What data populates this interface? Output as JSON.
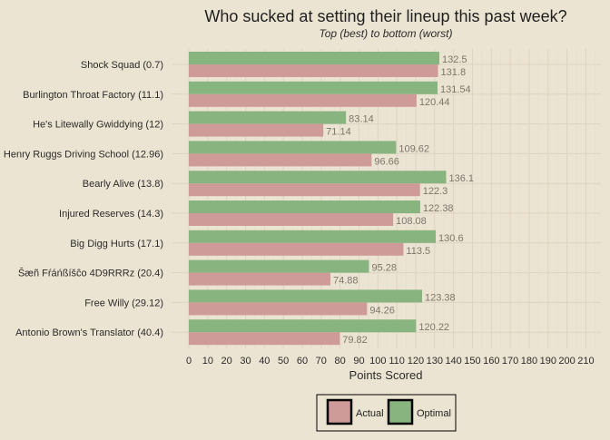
{
  "chart_data": {
    "type": "bar",
    "orientation": "horizontal",
    "title": "Who sucked at setting their lineup this past week?",
    "subtitle": "Top (best) to bottom (worst)",
    "xlabel": "Points Scored",
    "ylabel": "",
    "xlim": [
      0,
      215
    ],
    "x_ticks": [
      0,
      10,
      20,
      30,
      40,
      50,
      60,
      70,
      80,
      90,
      100,
      110,
      120,
      130,
      140,
      150,
      160,
      170,
      180,
      190,
      200,
      210
    ],
    "grid": true,
    "legend_position": "bottom",
    "categories": [
      "Shock Squad (0.7)",
      "Burlington Throat Factory (11.1)",
      "He's Litewally Gwiddying (12)",
      "Henry Ruggs Driving School (12.96)",
      "Bearly Alive (13.8)",
      "Injured Reserves (14.3)",
      "Big Digg Hurts (17.1)",
      "Šæñ Fŕáńßíšĉo 4D9RRRz (20.4)",
      "Free Willy (29.12)",
      "Antonio Brown's Translator (40.4)"
    ],
    "series": [
      {
        "name": "Optimal",
        "color": "#88b47f",
        "values": [
          132.5,
          131.54,
          83.14,
          109.62,
          136.1,
          122.38,
          130.6,
          95.28,
          123.38,
          120.22
        ]
      },
      {
        "name": "Actual",
        "color": "#cf9b99",
        "values": [
          131.8,
          120.44,
          71.14,
          96.66,
          122.3,
          108.08,
          113.5,
          74.88,
          94.26,
          79.82
        ]
      }
    ],
    "data_labels": {
      "optimal": [
        "132.5",
        "131.54",
        "83.14",
        "109.62",
        "136.1",
        "122.38",
        "130.6",
        "95.28",
        "123.38",
        "120.22"
      ],
      "actual": [
        "131.8",
        "120.44",
        "71.14",
        "96.66",
        "122.3",
        "108.08",
        "113.5",
        "74.88",
        "94.26",
        "79.82"
      ]
    },
    "legend": [
      "Actual",
      "Optimal"
    ]
  },
  "colors": {
    "background": "#ece4d2",
    "grid_major": "#ddd3bf",
    "grid_minor": "#e5dcc9",
    "text": "#2b2b2b",
    "label": "#7d766a"
  }
}
